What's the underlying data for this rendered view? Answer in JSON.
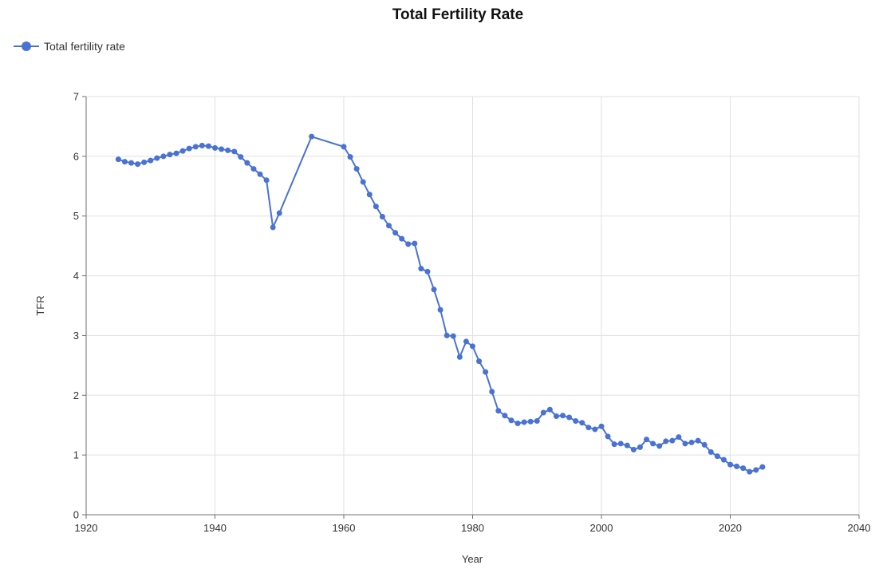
{
  "chart_data": {
    "type": "line",
    "title": "Total Fertility Rate",
    "xlabel": "Year",
    "ylabel": "TFR",
    "xlim": [
      1920,
      2040
    ],
    "ylim": [
      0,
      7
    ],
    "xticks": [
      "1920",
      "1940",
      "1960",
      "1980",
      "2000",
      "2020",
      "2040"
    ],
    "yticks": [
      "0",
      "1",
      "2",
      "3",
      "4",
      "5",
      "6",
      "7"
    ],
    "grid": true,
    "legend_position": "top-left",
    "series": [
      {
        "name": "Total fertility rate",
        "color": "#4a72d4",
        "x": [
          1925,
          1926,
          1927,
          1928,
          1929,
          1930,
          1931,
          1932,
          1933,
          1934,
          1935,
          1936,
          1937,
          1938,
          1939,
          1940,
          1941,
          1942,
          1943,
          1944,
          1945,
          1946,
          1947,
          1948,
          1949,
          1950,
          1955,
          1960,
          1961,
          1962,
          1963,
          1964,
          1965,
          1966,
          1967,
          1968,
          1969,
          1970,
          1971,
          1972,
          1973,
          1974,
          1975,
          1976,
          1977,
          1978,
          1979,
          1980,
          1981,
          1982,
          1983,
          1984,
          1985,
          1986,
          1987,
          1988,
          1989,
          1990,
          1991,
          1992,
          1993,
          1994,
          1995,
          1996,
          1997,
          1998,
          1999,
          2000,
          2001,
          2002,
          2003,
          2004,
          2005,
          2006,
          2007,
          2008,
          2009,
          2010,
          2011,
          2012,
          2013,
          2014,
          2015,
          2016,
          2017,
          2018,
          2019,
          2020,
          2021,
          2022,
          2023,
          2024,
          2025
        ],
        "values": [
          5.95,
          5.91,
          5.89,
          5.87,
          5.9,
          5.93,
          5.97,
          6.0,
          6.03,
          6.05,
          6.09,
          6.13,
          6.16,
          6.18,
          6.17,
          6.14,
          6.12,
          6.1,
          6.08,
          5.99,
          5.89,
          5.79,
          5.7,
          5.6,
          4.81,
          5.05,
          6.33,
          6.16,
          5.99,
          5.79,
          5.57,
          5.36,
          5.16,
          4.99,
          4.84,
          4.72,
          4.62,
          4.53,
          4.54,
          4.12,
          4.07,
          3.77,
          3.43,
          3.0,
          2.99,
          2.64,
          2.9,
          2.82,
          2.57,
          2.39,
          2.06,
          1.74,
          1.66,
          1.58,
          1.53,
          1.55,
          1.56,
          1.57,
          1.71,
          1.76,
          1.65,
          1.66,
          1.63,
          1.57,
          1.54,
          1.46,
          1.43,
          1.48,
          1.31,
          1.18,
          1.19,
          1.16,
          1.09,
          1.13,
          1.26,
          1.19,
          1.15,
          1.23,
          1.24,
          1.3,
          1.19,
          1.21,
          1.24,
          1.17,
          1.05,
          0.98,
          0.92,
          0.84,
          0.81,
          0.78,
          0.72,
          0.75,
          0.8
        ]
      }
    ]
  }
}
